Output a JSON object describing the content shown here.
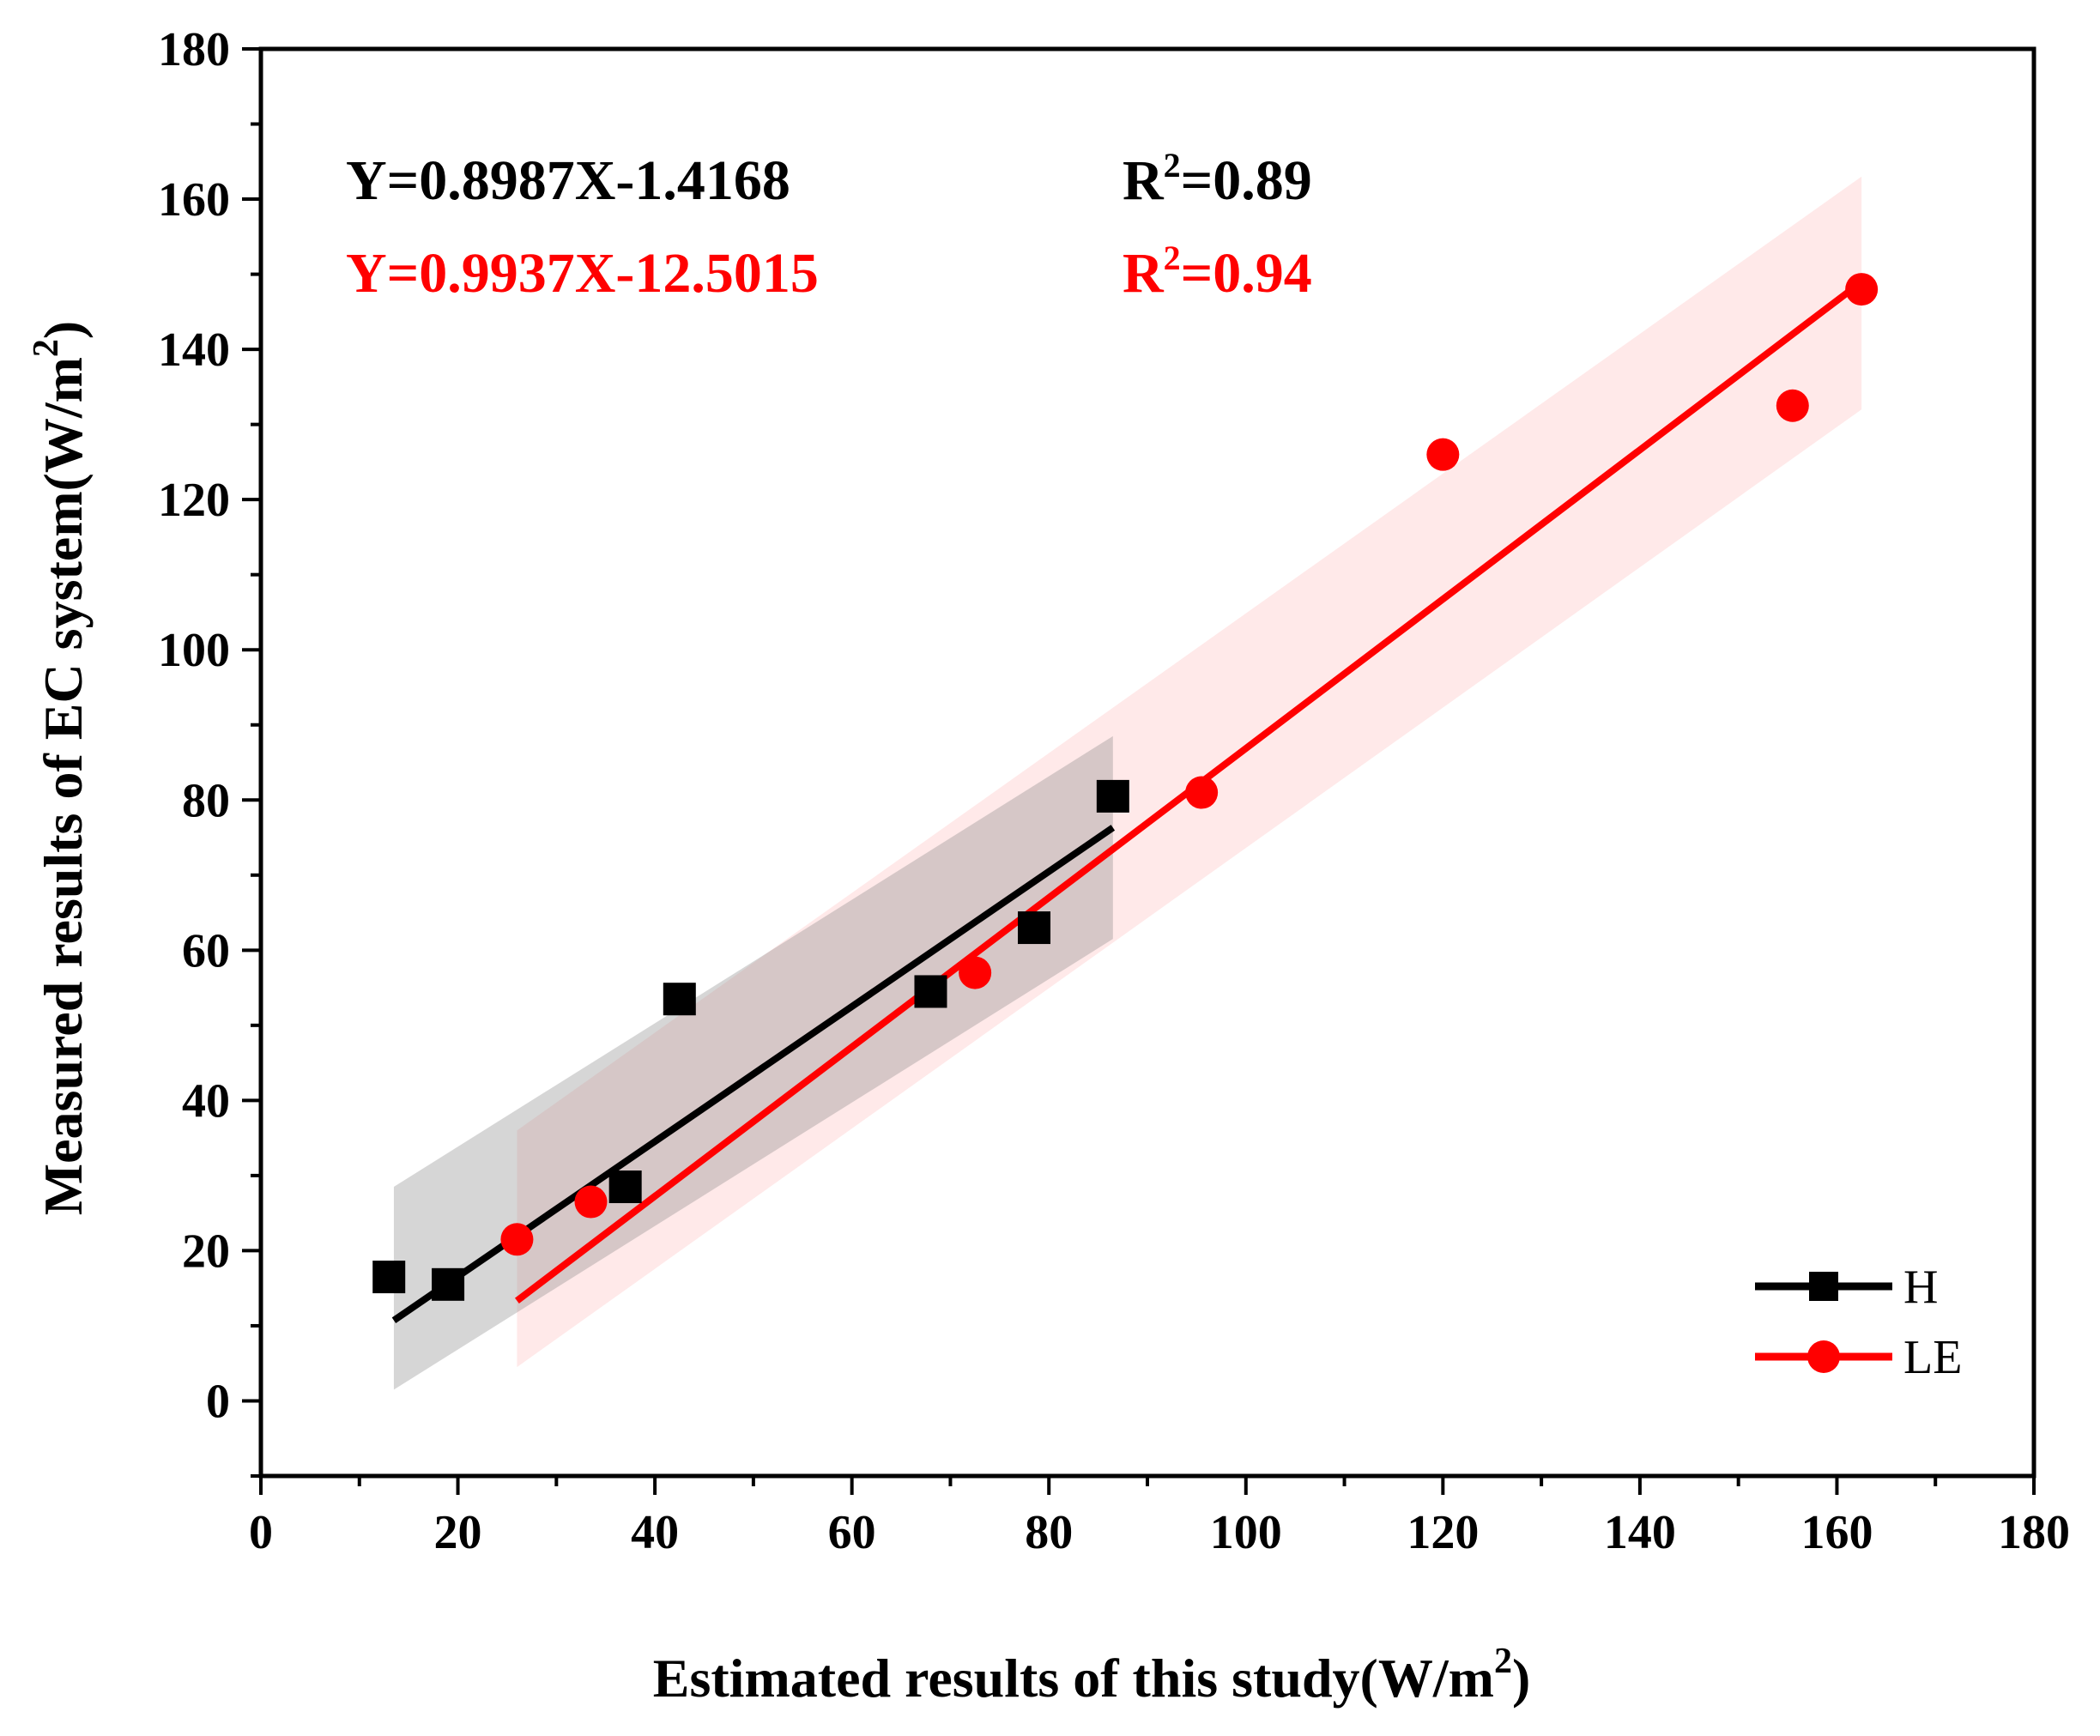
{
  "chart_data": {
    "type": "scatter",
    "xlabel": "Estimated results of this study(W/m",
    "xlabel_sup": "2",
    "xlabel_tail": ")",
    "ylabel": "Measured results of EC system(W/m",
    "ylabel_sup": "2",
    "ylabel_tail": ")",
    "xlim": [
      0,
      180
    ],
    "ylim": [
      -10,
      180
    ],
    "xticks": [
      0,
      20,
      40,
      60,
      80,
      100,
      120,
      140,
      160,
      180
    ],
    "yticks": [
      0,
      20,
      40,
      60,
      80,
      100,
      120,
      140,
      160,
      180
    ],
    "series": [
      {
        "name": "H",
        "color": "#000000",
        "band_color": "#7f7f7f",
        "marker": "square",
        "points": [
          [
            13,
            16.5
          ],
          [
            19,
            15.5
          ],
          [
            37,
            28.5
          ],
          [
            42.5,
            53.5
          ],
          [
            68,
            54.5
          ],
          [
            78.5,
            63
          ],
          [
            86.5,
            80.5
          ]
        ],
        "fit": {
          "slope": 0.8987,
          "intercept": -1.4168,
          "x_range": [
            13.5,
            86.5
          ]
        },
        "band": {
          "x_range": [
            13.5,
            86.5
          ],
          "low_start": 1.5,
          "low_end": 61.5,
          "high_start": 28.5,
          "high_end": 88.5
        },
        "equation": "Y=0.8987X-1.4168",
        "r2_label": "R",
        "r2_sup": "2",
        "r2_value": "=0.89"
      },
      {
        "name": "LE",
        "color": "#ff0000",
        "band_color": "#ff9c9c",
        "marker": "circle",
        "points": [
          [
            26,
            21.5
          ],
          [
            33.5,
            26.5
          ],
          [
            72.5,
            57
          ],
          [
            95.5,
            81
          ],
          [
            120,
            126
          ],
          [
            155.5,
            132.5
          ],
          [
            162.5,
            148
          ]
        ],
        "fit": {
          "slope": 0.9937,
          "intercept": -12.5015,
          "x_range": [
            26,
            162.5
          ]
        },
        "band": {
          "x_range": [
            26,
            162.5
          ],
          "low_start": 4.5,
          "low_end": 132,
          "high_start": 36,
          "high_end": 163
        },
        "equation": "Y=0.9937X-12.5015",
        "r2_label": "R",
        "r2_sup": "2",
        "r2_value": "=0.94"
      }
    ],
    "legend_position": "bottom-right"
  }
}
